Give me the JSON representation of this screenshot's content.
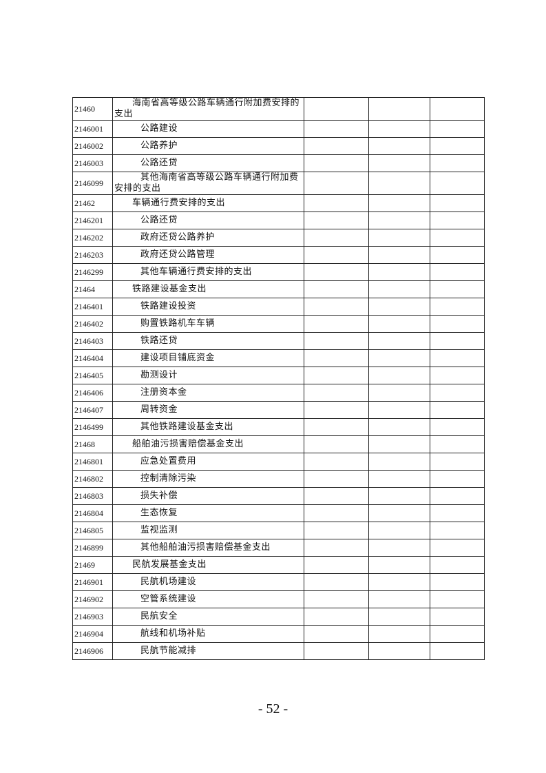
{
  "table": {
    "rows": [
      [
        "21460",
        "海南省高等级公路车辆通行附加费安排的支出"
      ],
      [
        "2146001",
        "公路建设"
      ],
      [
        "2146002",
        "公路养护"
      ],
      [
        "2146003",
        "公路还贷"
      ],
      [
        "2146099",
        "其他海南省高等级公路车辆通行附加费安排的支出"
      ],
      [
        "21462",
        "车辆通行费安排的支出"
      ],
      [
        "2146201",
        "公路还贷"
      ],
      [
        "2146202",
        "政府还贷公路养护"
      ],
      [
        "2146203",
        "政府还贷公路管理"
      ],
      [
        "2146299",
        "其他车辆通行费安排的支出"
      ],
      [
        "21464",
        "铁路建设基金支出"
      ],
      [
        "2146401",
        "铁路建设投资"
      ],
      [
        "2146402",
        "购置铁路机车车辆"
      ],
      [
        "2146403",
        "铁路还贷"
      ],
      [
        "2146404",
        "建设项目铺底资金"
      ],
      [
        "2146405",
        "勘测设计"
      ],
      [
        "2146406",
        "注册资本金"
      ],
      [
        "2146407",
        "周转资金"
      ],
      [
        "2146499",
        "其他铁路建设基金支出"
      ],
      [
        "21468",
        "船舶油污损害赔偿基金支出"
      ],
      [
        "2146801",
        "应急处置费用"
      ],
      [
        "2146802",
        "控制清除污染"
      ],
      [
        "2146803",
        "损失补偿"
      ],
      [
        "2146804",
        "生态恢复"
      ],
      [
        "2146805",
        "监视监测"
      ],
      [
        "2146899",
        "其他船舶油污损害赔偿基金支出"
      ],
      [
        "21469",
        "民航发展基金支出"
      ],
      [
        "2146901",
        "民航机场建设"
      ],
      [
        "2146902",
        "空管系统建设"
      ],
      [
        "2146903",
        "民航安全"
      ],
      [
        "2146904",
        "航线和机场补贴"
      ],
      [
        "2146906",
        "民航节能减排"
      ]
    ]
  },
  "footer": {
    "page_number": "- 52 -"
  }
}
